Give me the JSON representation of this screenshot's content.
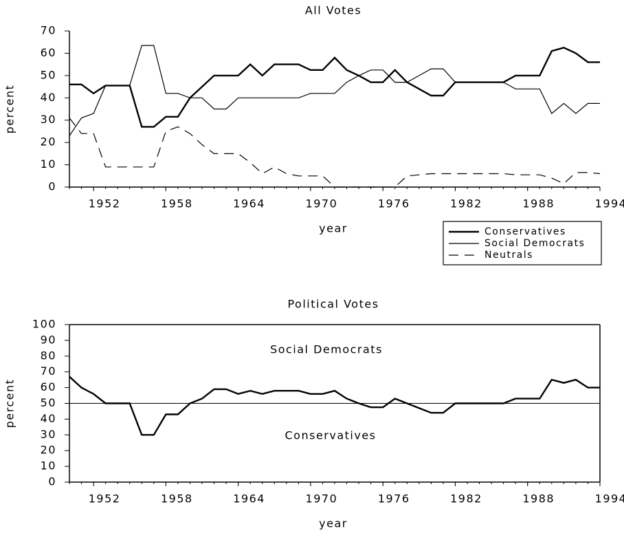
{
  "chart_data": [
    {
      "type": "line",
      "title": "All Votes",
      "x_label": "year",
      "y_label": "percent",
      "x": [
        1950,
        1951,
        1952,
        1953,
        1954,
        1955,
        1956,
        1957,
        1958,
        1959,
        1960,
        1961,
        1962,
        1963,
        1964,
        1965,
        1966,
        1967,
        1968,
        1969,
        1970,
        1971,
        1972,
        1973,
        1974,
        1975,
        1976,
        1977,
        1978,
        1979,
        1980,
        1981,
        1982,
        1983,
        1984,
        1985,
        1986,
        1987,
        1988,
        1989,
        1990,
        1991,
        1992,
        1993,
        1994
      ],
      "series": [
        {
          "name": "Conservatives",
          "color": "#000000",
          "line_width": 2,
          "dashed": false,
          "values": [
            46,
            46,
            42,
            45.5,
            45.5,
            45.5,
            27,
            27,
            31.5,
            31.5,
            40,
            45,
            50,
            50,
            50,
            55,
            50,
            55,
            55,
            55,
            52.5,
            52.5,
            58,
            52.5,
            50,
            47,
            47,
            52.5,
            47,
            44,
            41,
            41,
            47,
            47,
            47,
            47,
            47,
            50,
            50,
            50,
            61,
            62.5,
            60,
            56,
            56
          ]
        },
        {
          "name": "Social Democrats",
          "color": "#000000",
          "line_width": 1,
          "dashed": false,
          "values": [
            23,
            31,
            33,
            45.5,
            45.5,
            45.5,
            63.5,
            63.5,
            42,
            42,
            40,
            40,
            35,
            35,
            40,
            40,
            40,
            40,
            40,
            40,
            42,
            42,
            42,
            47,
            50,
            52.5,
            52.5,
            47,
            47,
            50,
            53,
            53,
            47,
            47,
            47,
            47,
            47,
            44,
            44,
            44,
            33,
            37.5,
            33,
            37.5,
            37.5
          ]
        },
        {
          "name": "Neutrals",
          "color": "#000000",
          "line_width": 1,
          "dashed": true,
          "values": [
            31,
            24,
            24,
            9,
            9,
            9,
            9,
            9,
            25,
            27,
            24,
            19,
            15,
            15,
            15,
            11,
            6,
            9,
            6,
            5,
            5,
            5,
            0,
            0,
            0,
            0,
            0,
            0,
            5,
            5.5,
            6,
            6,
            6,
            6,
            6,
            6,
            6,
            5.5,
            5.5,
            5.5,
            4,
            1.5,
            6.5,
            6.5,
            6
          ]
        }
      ],
      "xlim": [
        1950,
        1994
      ],
      "xticks": [
        1952,
        1958,
        1964,
        1970,
        1976,
        1982,
        1988,
        1994
      ],
      "ylim": [
        0,
        70
      ],
      "yticks": [
        0,
        10,
        20,
        30,
        40,
        50,
        60,
        70
      ],
      "frame": "axes",
      "legend": "below-right"
    },
    {
      "type": "line",
      "title": "Political Votes",
      "x_label": "year",
      "y_label": "percent",
      "x": [
        1950,
        1951,
        1952,
        1953,
        1954,
        1955,
        1956,
        1957,
        1958,
        1959,
        1960,
        1961,
        1962,
        1963,
        1964,
        1965,
        1966,
        1967,
        1968,
        1969,
        1970,
        1971,
        1972,
        1973,
        1974,
        1975,
        1976,
        1977,
        1978,
        1979,
        1980,
        1981,
        1982,
        1983,
        1984,
        1985,
        1986,
        1987,
        1988,
        1989,
        1990,
        1991,
        1992,
        1993,
        1994
      ],
      "series": [
        {
          "color": "#000000",
          "line_width": 2,
          "dashed": false,
          "values": [
            67,
            60,
            56,
            50,
            50,
            50,
            30,
            30,
            43,
            43,
            50,
            53,
            59,
            59,
            56,
            58,
            56,
            58,
            58,
            58,
            56,
            56,
            58,
            53,
            50,
            47.5,
            47.5,
            53,
            50,
            47,
            44,
            44,
            50,
            50,
            50,
            50,
            50,
            53,
            53,
            53,
            65,
            63,
            65,
            60,
            60
          ]
        }
      ],
      "hline": 50,
      "annotations": [
        "Social Democrats",
        "Conservatives"
      ],
      "xlim": [
        1950,
        1994
      ],
      "xticks": [
        1952,
        1958,
        1964,
        1970,
        1976,
        1982,
        1988,
        1994
      ],
      "ylim": [
        0,
        100
      ],
      "yticks": [
        0,
        10,
        20,
        30,
        40,
        50,
        60,
        70,
        80,
        90,
        100
      ],
      "frame": "box"
    }
  ]
}
